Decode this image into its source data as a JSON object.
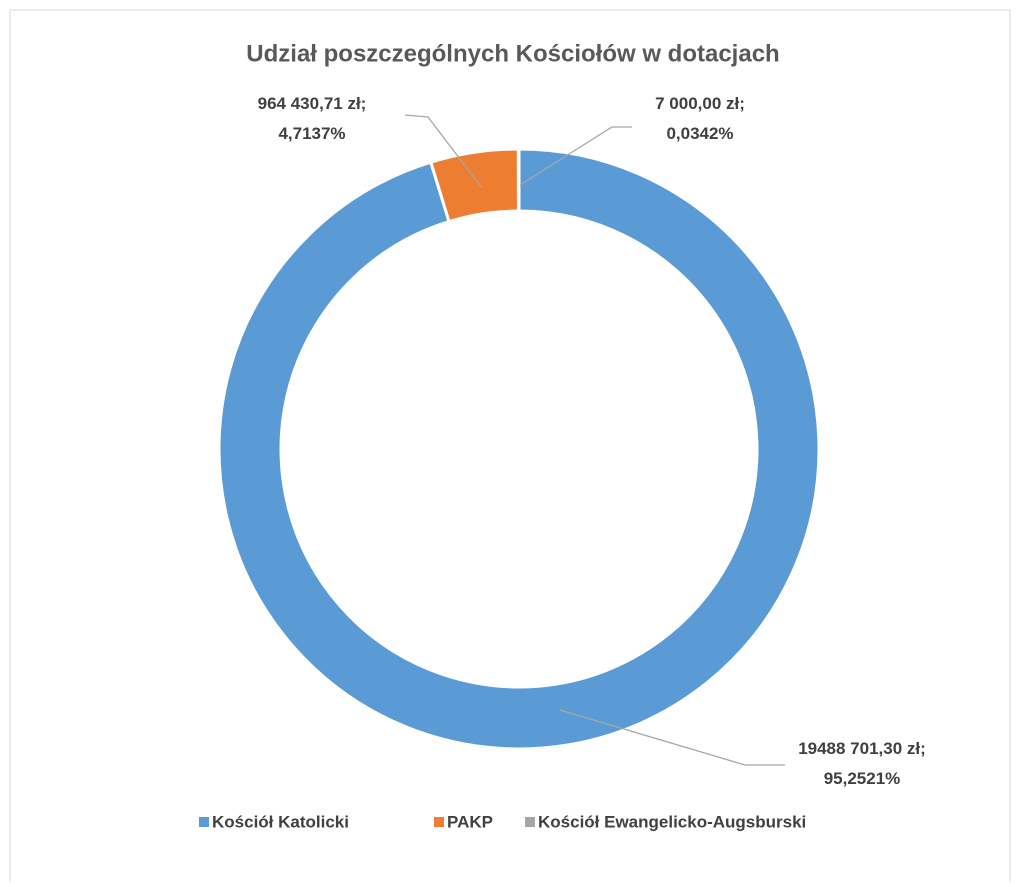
{
  "chart_data": {
    "type": "donut",
    "title": "Udział poszczególnych Kościołów w dotacjach",
    "categories": [
      "Kościół Katolicki",
      "PAKP",
      "Kościół Ewangelicko-Augsburski"
    ],
    "values": [
      19488701.3,
      964430.71,
      7000.0
    ],
    "value_labels": [
      "19488 701,30 zł;\n95,2521%",
      "964 430,71 zł;\n4,7137%",
      "7 000,00 zł;\n0,0342%"
    ],
    "colors": [
      "#5b9bd5",
      "#ed7d31",
      "#a5a5a5"
    ],
    "legend": "bottom"
  }
}
